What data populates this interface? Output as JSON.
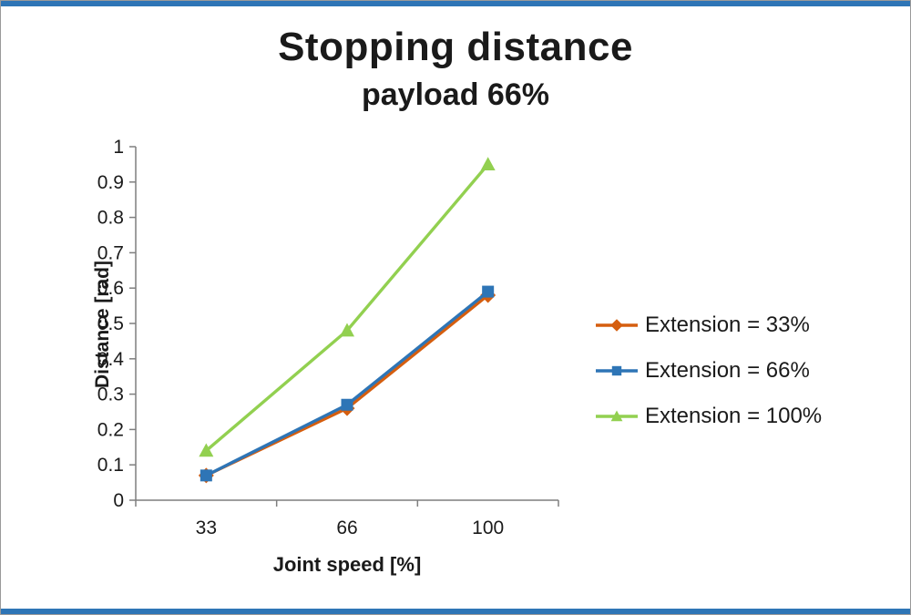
{
  "page": {
    "background": "#ffffff",
    "top_bar_color": "#2E75B6",
    "bottom_bar_color": "#2E75B6"
  },
  "chart_data": {
    "type": "line",
    "title": "Stopping distance",
    "subtitle": "payload 66%",
    "xlabel": "Joint speed [%]",
    "ylabel": "Distance [rad]",
    "categories": [
      "33",
      "66",
      "100"
    ],
    "series": [
      {
        "name": "Extension = 33%",
        "marker": "diamond",
        "color": "#D55E0F",
        "values": [
          0.07,
          0.26,
          0.58
        ]
      },
      {
        "name": "Extension = 66%",
        "marker": "square",
        "color": "#2E75B6",
        "values": [
          0.07,
          0.27,
          0.59
        ]
      },
      {
        "name": "Extension = 100%",
        "marker": "triangle",
        "color": "#92D050",
        "values": [
          0.14,
          0.48,
          0.95
        ]
      }
    ],
    "ylim": [
      0,
      1
    ],
    "y_ticks": [
      0,
      0.1,
      0.2,
      0.3,
      0.4,
      0.5,
      0.6,
      0.7,
      0.8,
      0.9,
      1
    ],
    "grid": false,
    "legend_position": "right",
    "axis_color": "#7F7F7F"
  }
}
